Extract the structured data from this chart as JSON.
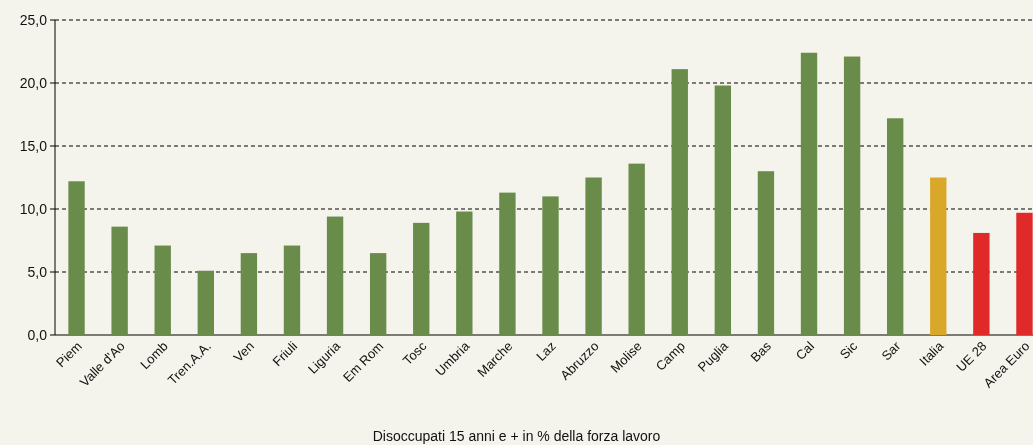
{
  "chart_data": {
    "type": "bar",
    "xlabel": "Disoccupati 15 anni e + in % della forza lavoro",
    "categories": [
      "Piem",
      "Valle d'Ao",
      "Lomb",
      "Tren.A.A.",
      "Ven",
      "Friuli",
      "Liguria",
      "Em Rom",
      "Tosc",
      "Umbria",
      "Marche",
      "Laz",
      "Abruzzo",
      "Molise",
      "Camp",
      "Puglia",
      "Bas",
      "Cal",
      "Sic",
      "Sar",
      "Italia",
      "UE 28",
      "Area Euro"
    ],
    "values": [
      12.2,
      8.6,
      7.1,
      5.1,
      6.5,
      7.1,
      9.4,
      6.5,
      8.9,
      9.8,
      11.3,
      11.0,
      12.5,
      13.6,
      21.1,
      19.8,
      13.0,
      22.4,
      22.1,
      17.2,
      12.5,
      8.1,
      9.7
    ],
    "colors": [
      "#6a8c4a",
      "#6a8c4a",
      "#6a8c4a",
      "#6a8c4a",
      "#6a8c4a",
      "#6a8c4a",
      "#6a8c4a",
      "#6a8c4a",
      "#6a8c4a",
      "#6a8c4a",
      "#6a8c4a",
      "#6a8c4a",
      "#6a8c4a",
      "#6a8c4a",
      "#6a8c4a",
      "#6a8c4a",
      "#6a8c4a",
      "#6a8c4a",
      "#6a8c4a",
      "#6a8c4a",
      "#d9a82a",
      "#e02a2a",
      "#e02a2a"
    ],
    "ylim": [
      0,
      25
    ],
    "yticks": [
      {
        "value": 0,
        "label": "0,0"
      },
      {
        "value": 5,
        "label": "5,0"
      },
      {
        "value": 10,
        "label": "10,0"
      },
      {
        "value": 15,
        "label": "15,0"
      },
      {
        "value": 20,
        "label": "20,0"
      },
      {
        "value": 25,
        "label": "25,0"
      }
    ],
    "grid": "y"
  }
}
